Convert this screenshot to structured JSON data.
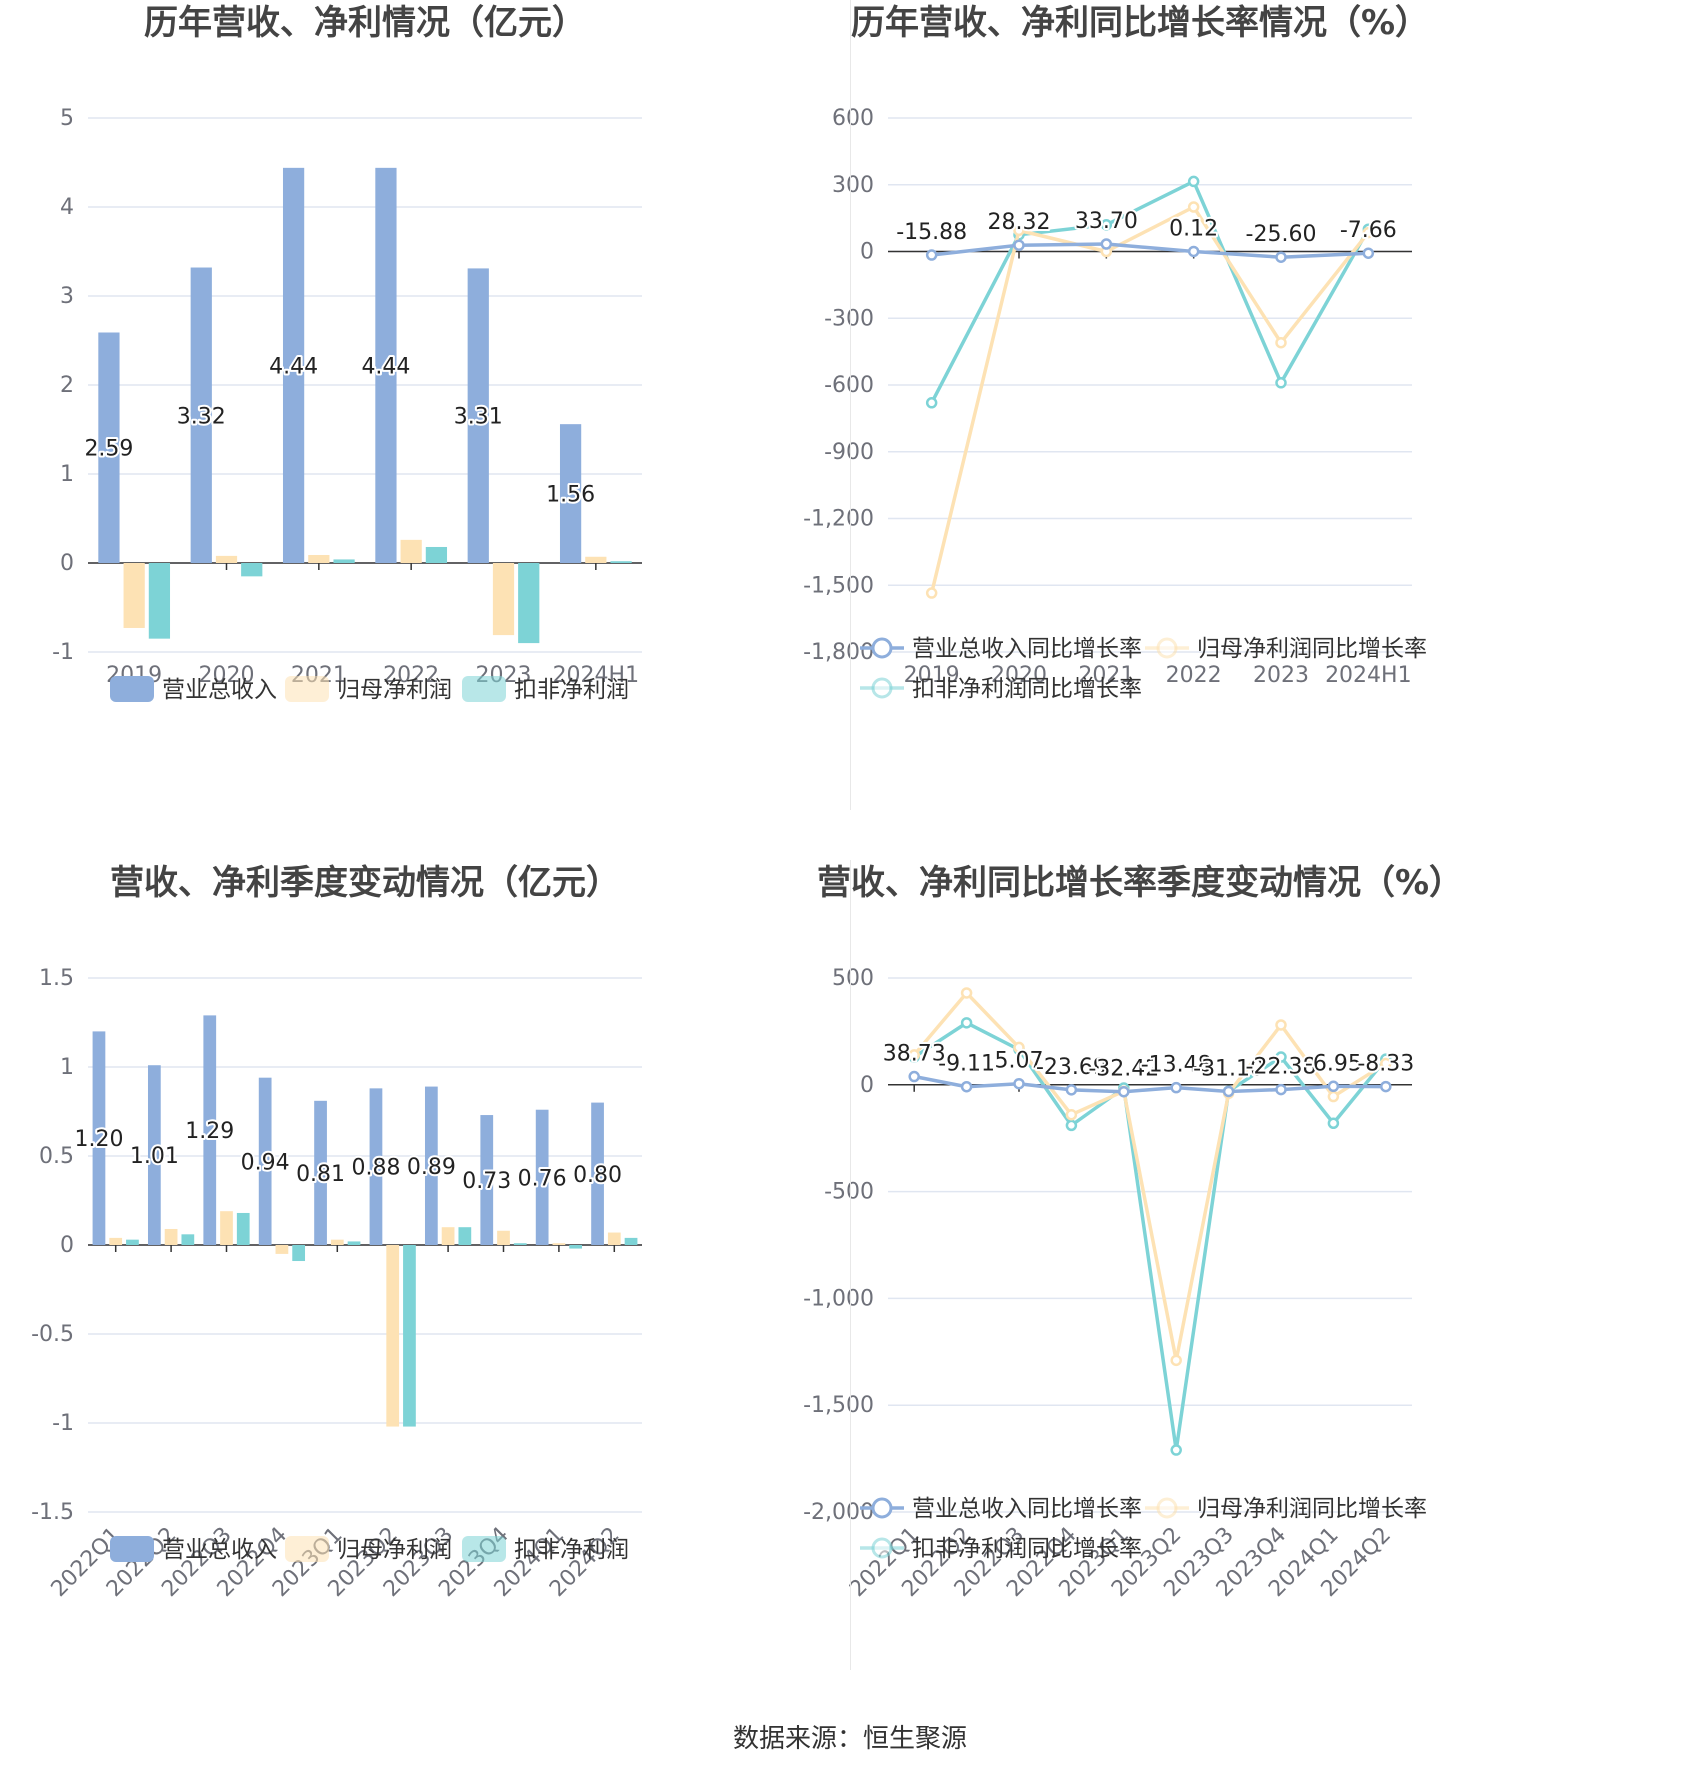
{
  "colors": {
    "revenue": "#8eaedc",
    "net_profit": "#fde2b4",
    "deducted_profit": "#7dd3d6",
    "grid": "#e0e6f1",
    "axis": "#6e7079"
  },
  "source_text": "数据来源：恒生聚源",
  "chart_data": [
    {
      "type": "bar",
      "title": "历年营收、净利情况（亿元）",
      "categories": [
        "2019",
        "2020",
        "2021",
        "2022",
        "2023",
        "2024H1"
      ],
      "ylim": [
        -1,
        5
      ],
      "yticks": [
        "-1",
        "0",
        "1",
        "2",
        "3",
        "4",
        "5"
      ],
      "grid": true,
      "legend_position": "bottom",
      "label_series": 0,
      "series": [
        {
          "name": "营业总收入",
          "values": [
            2.59,
            3.32,
            4.44,
            4.44,
            3.31,
            1.56
          ],
          "labels": [
            "2.59",
            "3.32",
            "4.44",
            "4.44",
            "3.31",
            "1.56"
          ]
        },
        {
          "name": "归母净利润",
          "values": [
            -0.73,
            0.08,
            0.09,
            0.26,
            -0.81,
            0.07
          ]
        },
        {
          "name": "扣非净利润",
          "values": [
            -0.85,
            -0.15,
            0.04,
            0.18,
            -0.9,
            0.02
          ]
        }
      ]
    },
    {
      "type": "line",
      "title": "历年营收、净利同比增长率情况（%）",
      "categories": [
        "2019",
        "2020",
        "2021",
        "2022",
        "2023",
        "2024H1"
      ],
      "ylim": [
        -1800,
        600
      ],
      "yticks": [
        "-1,800",
        "-1,500",
        "-1,200",
        "-900",
        "-600",
        "-300",
        "0",
        "300",
        "600"
      ],
      "grid": true,
      "legend_position": "bottom",
      "label_series": 0,
      "series": [
        {
          "name": "营业总收入同比增长率",
          "values": [
            -15.88,
            28.32,
            33.7,
            0.12,
            -25.6,
            -7.66
          ],
          "labels": [
            "-15.88",
            "28.32",
            "33.70",
            "0.12",
            "-25.60",
            "-7.66"
          ]
        },
        {
          "name": "归母净利润同比增长率",
          "values": [
            -1535,
            95,
            0,
            200,
            -410,
            85
          ]
        },
        {
          "name": "扣非净利润同比增长率",
          "values": [
            -680,
            75,
            120,
            315,
            -590,
            100
          ]
        }
      ]
    },
    {
      "type": "bar",
      "title": "营收、净利季度变动情况（亿元）",
      "categories": [
        "2022Q1",
        "2022Q2",
        "2022Q3",
        "2022Q4",
        "2023Q1",
        "2023Q2",
        "2023Q3",
        "2023Q4",
        "2024Q1",
        "2024Q2"
      ],
      "ylim": [
        -1.5,
        1.5
      ],
      "yticks": [
        "-1.5",
        "-1",
        "-0.5",
        "0",
        "0.5",
        "1",
        "1.5"
      ],
      "grid": true,
      "legend_position": "bottom",
      "label_series": 0,
      "series": [
        {
          "name": "营业总收入",
          "values": [
            1.2,
            1.01,
            1.29,
            0.94,
            0.81,
            0.88,
            0.89,
            0.73,
            0.76,
            0.8
          ],
          "labels": [
            "1.20",
            "1.01",
            "1.29",
            "0.94",
            "0.81",
            "0.88",
            "0.89",
            "0.73",
            "0.76",
            "0.80"
          ]
        },
        {
          "name": "归母净利润",
          "values": [
            0.04,
            0.09,
            0.19,
            -0.05,
            0.03,
            -1.02,
            0.1,
            0.08,
            0.01,
            0.07
          ]
        },
        {
          "name": "扣非净利润",
          "values": [
            0.03,
            0.06,
            0.18,
            -0.09,
            0.02,
            -1.02,
            0.1,
            0.01,
            -0.02,
            0.04
          ]
        }
      ]
    },
    {
      "type": "line",
      "title": "营收、净利同比增长率季度变动情况（%）",
      "categories": [
        "2022Q1",
        "2022Q2",
        "2022Q3",
        "2022Q4",
        "2023Q1",
        "2023Q2",
        "2023Q3",
        "2023Q4",
        "2024Q1",
        "2024Q2"
      ],
      "ylim": [
        -2000,
        500
      ],
      "yticks": [
        "-2,000",
        "-1,500",
        "-1,000",
        "-500",
        "0",
        "500"
      ],
      "grid": true,
      "legend_position": "bottom",
      "label_series": 0,
      "series": [
        {
          "name": "营业总收入同比增长率",
          "values": [
            38.73,
            -9.11,
            5.07,
            -23.69,
            -32.42,
            -13.48,
            -31.1,
            -22.38,
            -6.95,
            -8.33
          ],
          "labels": [
            "38.73",
            "-9.11",
            "5.07",
            "-23.69",
            "-32.42",
            "-13.48",
            "-31.10",
            "-22.38",
            "-6.95",
            "-8.33"
          ]
        },
        {
          "name": "归母净利润同比增长率",
          "values": [
            140,
            430,
            175,
            -140,
            -30,
            -1290,
            -40,
            280,
            -55,
            100
          ]
        },
        {
          "name": "扣非净利润同比增长率",
          "values": [
            130,
            290,
            165,
            -190,
            -15,
            -1710,
            -30,
            130,
            -180,
            120
          ]
        }
      ]
    }
  ]
}
